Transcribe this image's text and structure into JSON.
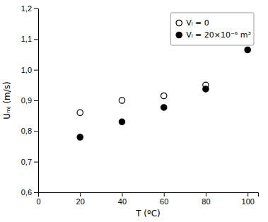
{
  "chart_data": {
    "type": "scatter",
    "xlabel": "T (ºC)",
    "ylabel": "Uₘⱼ (m/s)",
    "series": [
      {
        "name": "Vₗ = 0",
        "color": "black",
        "marker": "circle-open",
        "x": [
          20,
          40,
          60,
          80
        ],
        "values": [
          0.86,
          0.9,
          0.915,
          0.95
        ]
      },
      {
        "name": "Vₗ = 20×10⁻⁶ m³",
        "color": "black",
        "marker": "circle",
        "x": [
          20,
          40,
          60,
          80,
          100
        ],
        "values": [
          0.78,
          0.83,
          0.877,
          0.937,
          1.065
        ]
      }
    ],
    "xlim": [
      0,
      105
    ],
    "ylim": [
      0.6,
      1.2
    ],
    "xticks": [
      0,
      20,
      40,
      60,
      80,
      100
    ],
    "yticks": [
      {
        "value": 0.6,
        "label": "0,6"
      },
      {
        "value": 0.7,
        "label": "0,7"
      },
      {
        "value": 0.8,
        "label": "0,8"
      },
      {
        "value": 0.9,
        "label": "0,9"
      },
      {
        "value": 1.0,
        "label": "1,0"
      },
      {
        "value": 1.1,
        "label": "1,1"
      },
      {
        "value": 1.2,
        "label": "1,2"
      }
    ],
    "grid": false,
    "legend": "upper right"
  }
}
